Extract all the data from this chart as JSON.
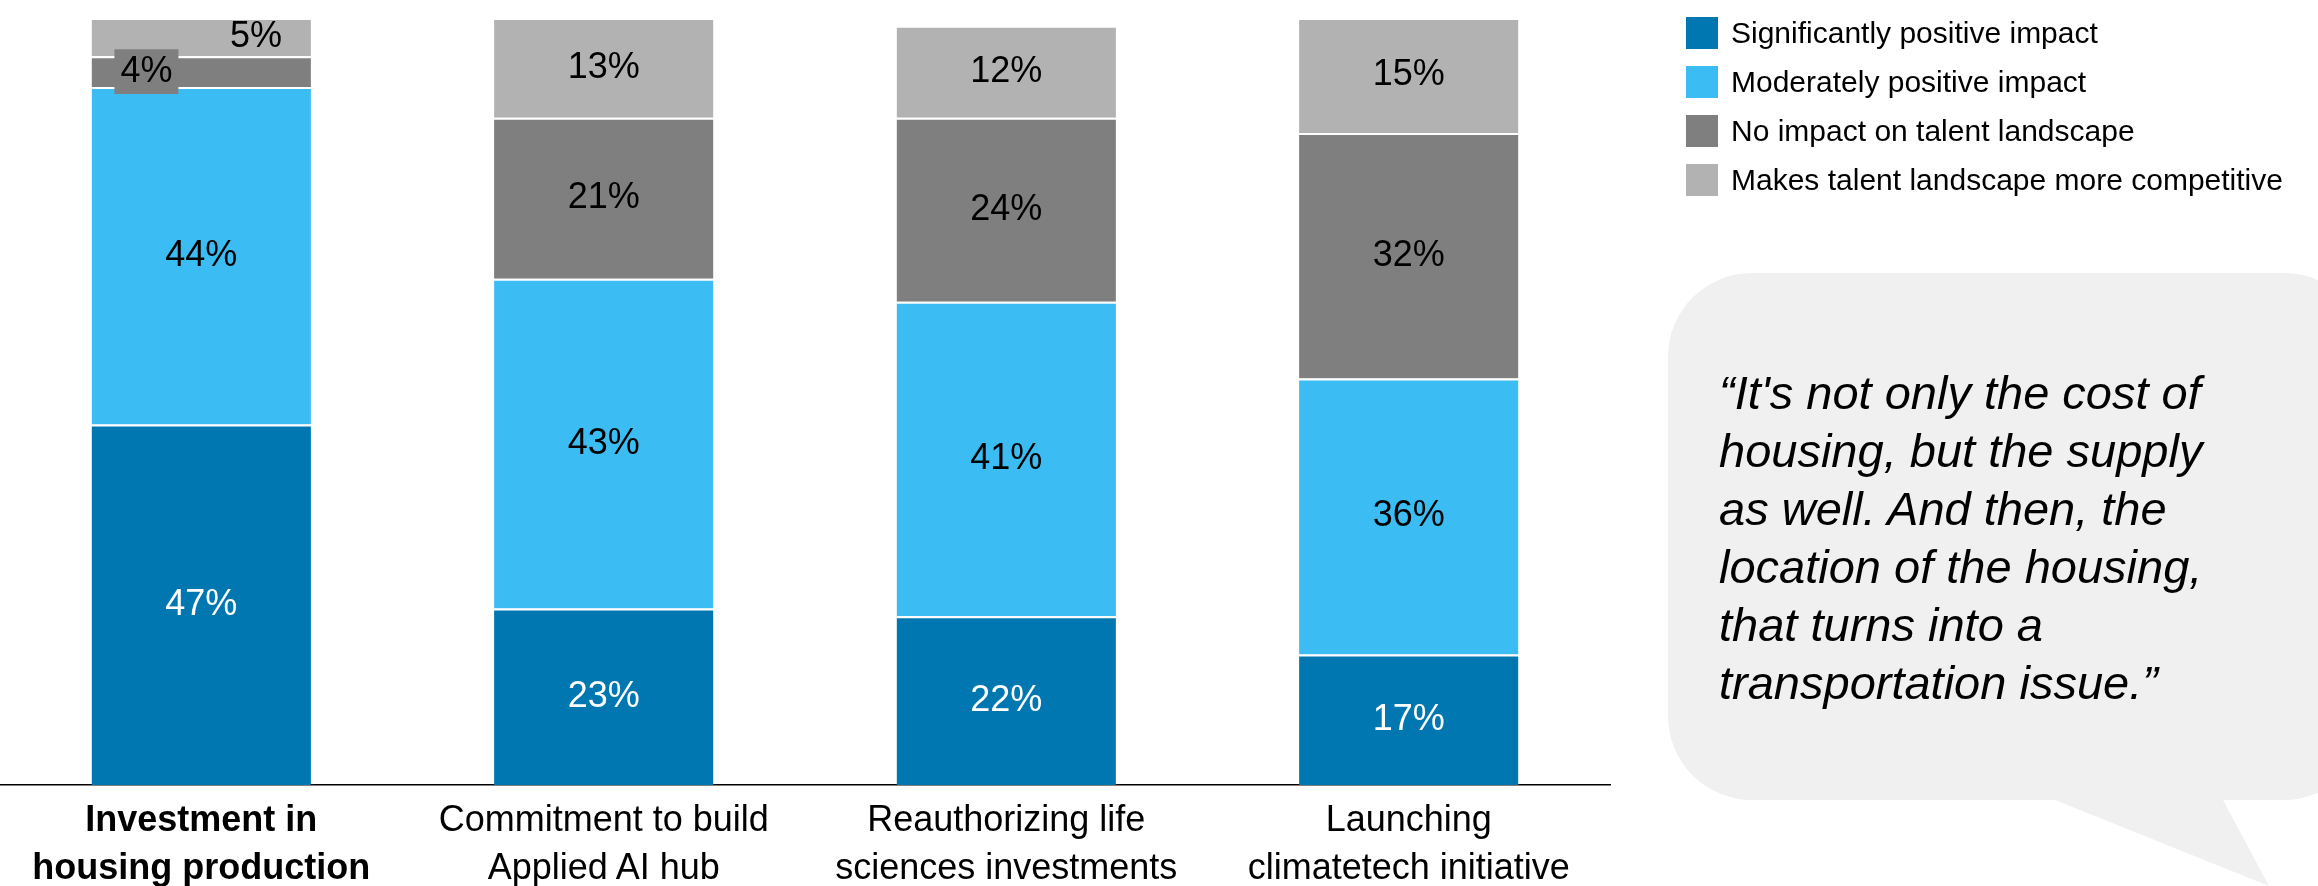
{
  "chart_data": {
    "type": "bar",
    "stacked": true,
    "categories": [
      "Investment in housing production",
      "Commitment to build Applied AI hub",
      "Reauthorizing life sciences investments",
      "Launching climatetech initiative"
    ],
    "series": [
      {
        "name": "Significantly positive impact",
        "color": "#0077b0",
        "values": [
          47,
          23,
          22,
          17
        ],
        "value_labels": [
          "47%",
          "23%",
          "22%",
          "17%"
        ]
      },
      {
        "name": "Moderately positive impact",
        "color": "#3bbdf3",
        "values": [
          44,
          43,
          41,
          36
        ],
        "value_labels": [
          "44%",
          "43%",
          "41%",
          "36%"
        ]
      },
      {
        "name": "No impact on talent landscape",
        "color": "#7f7f7f",
        "values": [
          4,
          21,
          24,
          32
        ],
        "value_labels": [
          "4%",
          "21%",
          "24%",
          "32%"
        ]
      },
      {
        "name": "Makes talent landscape more competitive",
        "color": "#b2b2b2",
        "values": [
          5,
          13,
          12,
          15
        ],
        "value_labels": [
          "5%",
          "13%",
          "12%",
          "15%"
        ]
      }
    ],
    "ylim": [
      0,
      100
    ],
    "legend": "top right",
    "tick_labels": "x",
    "annotations": [
      "“It's not only the cost of housing, but the supply as well. And then, the location of the housing, that turns into a transportation issue.”"
    ]
  }
}
